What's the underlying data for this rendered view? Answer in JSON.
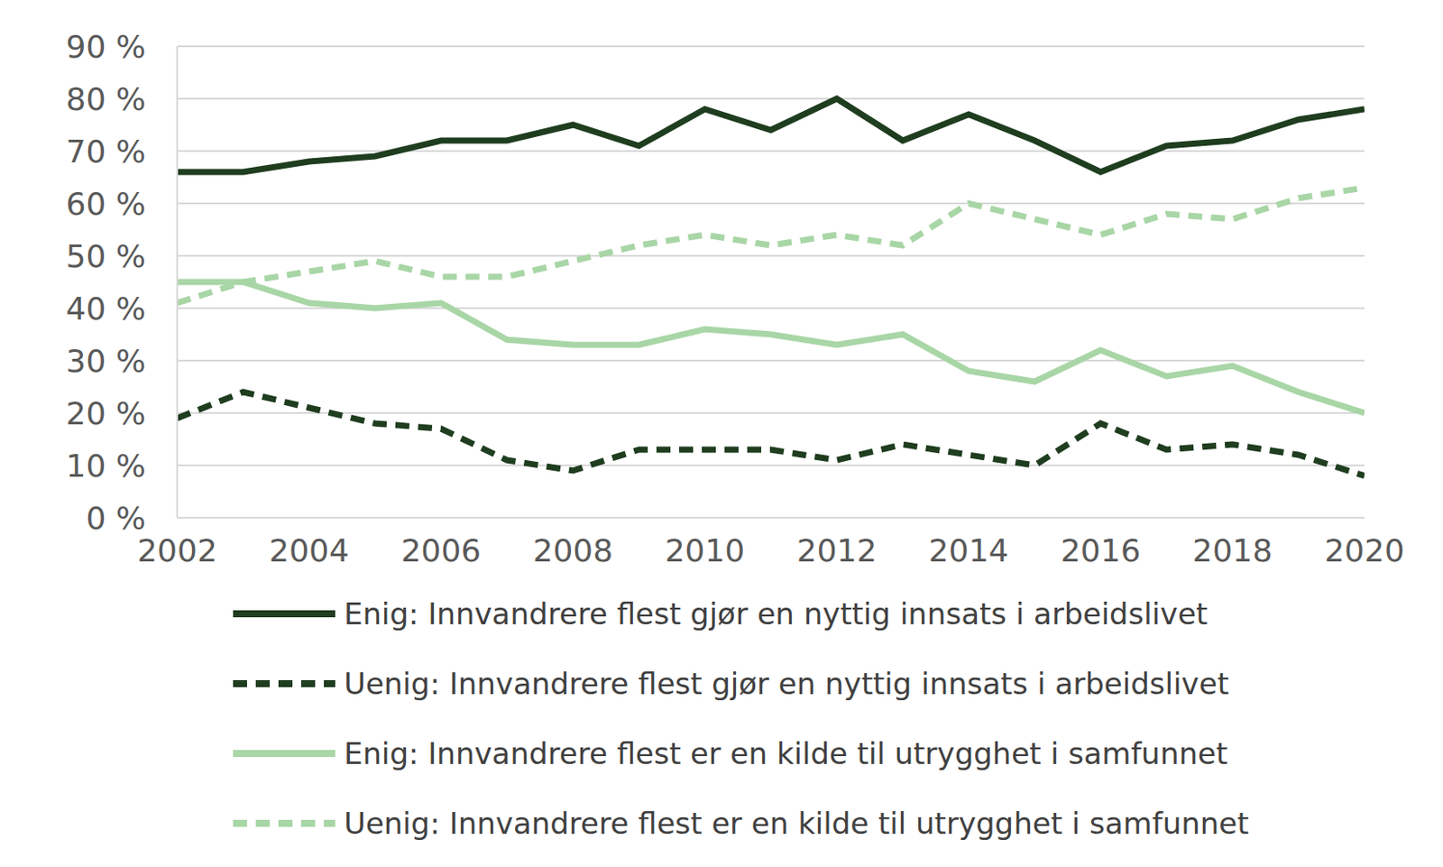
{
  "chart_data": {
    "type": "line",
    "x": [
      2002,
      2003,
      2004,
      2005,
      2006,
      2007,
      2008,
      2009,
      2010,
      2011,
      2012,
      2013,
      2014,
      2015,
      2016,
      2017,
      2018,
      2019,
      2020
    ],
    "xlim": [
      2002,
      2020
    ],
    "xticks": [
      2002,
      2004,
      2006,
      2008,
      2010,
      2012,
      2014,
      2016,
      2018,
      2020
    ],
    "ylim": [
      0,
      90
    ],
    "yticks": [
      {
        "value": 0,
        "label": "0 %"
      },
      {
        "value": 10,
        "label": "10 %"
      },
      {
        "value": 20,
        "label": "20 %"
      },
      {
        "value": 30,
        "label": "30 %"
      },
      {
        "value": 40,
        "label": "40 %"
      },
      {
        "value": 50,
        "label": "50 %"
      },
      {
        "value": 60,
        "label": "60 %"
      },
      {
        "value": 70,
        "label": "70 %"
      },
      {
        "value": 80,
        "label": "80 %"
      },
      {
        "value": 90,
        "label": "90 %"
      }
    ],
    "grid": true,
    "legend": "bottom",
    "series": [
      {
        "name": "Enig: Innvandrere flest gjør en nyttig innsats i arbeidslivet",
        "color": "#1f3d1f",
        "line_style": "solid",
        "values": [
          66,
          66,
          68,
          69,
          72,
          72,
          75,
          71,
          78,
          74,
          80,
          72,
          77,
          72,
          66,
          71,
          72,
          76,
          78
        ]
      },
      {
        "name": "Uenig: Innvandrere flest gjør en nyttig innsats i arbeidslivet",
        "color": "#1f3d1f",
        "line_style": "dashed",
        "values": [
          19,
          24,
          21,
          18,
          17,
          11,
          9,
          13,
          13,
          13,
          11,
          14,
          12,
          10,
          18,
          13,
          14,
          12,
          8
        ]
      },
      {
        "name": "Enig: Innvandrere flest er en kilde til utrygghet i samfunnet",
        "color": "#a9d6a6",
        "line_style": "solid",
        "values": [
          45,
          45,
          41,
          40,
          41,
          34,
          33,
          33,
          36,
          35,
          33,
          35,
          28,
          26,
          32,
          27,
          29,
          24,
          20
        ]
      },
      {
        "name": "Uenig: Innvandrere flest er en kilde til utrygghet i samfunnet",
        "color": "#a9d6a6",
        "line_style": "dashed",
        "values": [
          41,
          45,
          47,
          49,
          46,
          46,
          49,
          52,
          54,
          52,
          54,
          52,
          60,
          57,
          54,
          58,
          57,
          61,
          63
        ]
      }
    ]
  }
}
